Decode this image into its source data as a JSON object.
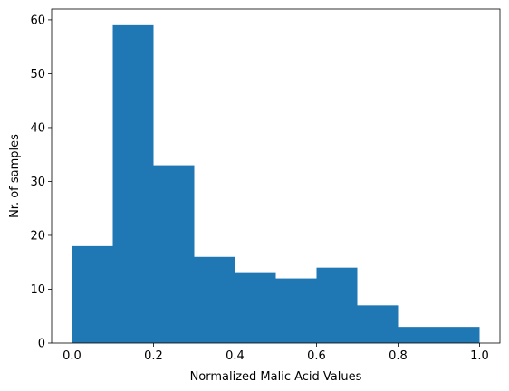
{
  "chart_data": {
    "type": "bar",
    "title": "",
    "xlabel": "Normalized Malic Acid Values",
    "ylabel": "Nr. of samples",
    "xlim": [
      -0.05,
      1.05
    ],
    "ylim": [
      0,
      62
    ],
    "bar_color": "#1f77b4",
    "bins": [
      {
        "x0": 0.0,
        "x1": 0.1,
        "value": 18
      },
      {
        "x0": 0.1,
        "x1": 0.2,
        "value": 59
      },
      {
        "x0": 0.2,
        "x1": 0.3,
        "value": 33
      },
      {
        "x0": 0.3,
        "x1": 0.4,
        "value": 16
      },
      {
        "x0": 0.4,
        "x1": 0.5,
        "value": 13
      },
      {
        "x0": 0.5,
        "x1": 0.6,
        "value": 12
      },
      {
        "x0": 0.6,
        "x1": 0.7,
        "value": 14
      },
      {
        "x0": 0.7,
        "x1": 0.8,
        "value": 7
      },
      {
        "x0": 0.8,
        "x1": 0.9,
        "value": 3
      },
      {
        "x0": 0.9,
        "x1": 1.0,
        "value": 3
      }
    ],
    "x_ticks": [
      {
        "value": 0.0,
        "label": "0.0"
      },
      {
        "value": 0.2,
        "label": "0.2"
      },
      {
        "value": 0.4,
        "label": "0.4"
      },
      {
        "value": 0.6,
        "label": "0.6"
      },
      {
        "value": 0.8,
        "label": "0.8"
      },
      {
        "value": 1.0,
        "label": "1.0"
      }
    ],
    "y_ticks": [
      {
        "value": 0,
        "label": "0"
      },
      {
        "value": 10,
        "label": "10"
      },
      {
        "value": 20,
        "label": "20"
      },
      {
        "value": 30,
        "label": "30"
      },
      {
        "value": 40,
        "label": "40"
      },
      {
        "value": 50,
        "label": "50"
      },
      {
        "value": 60,
        "label": "60"
      }
    ],
    "grid": false,
    "legend": "none"
  }
}
